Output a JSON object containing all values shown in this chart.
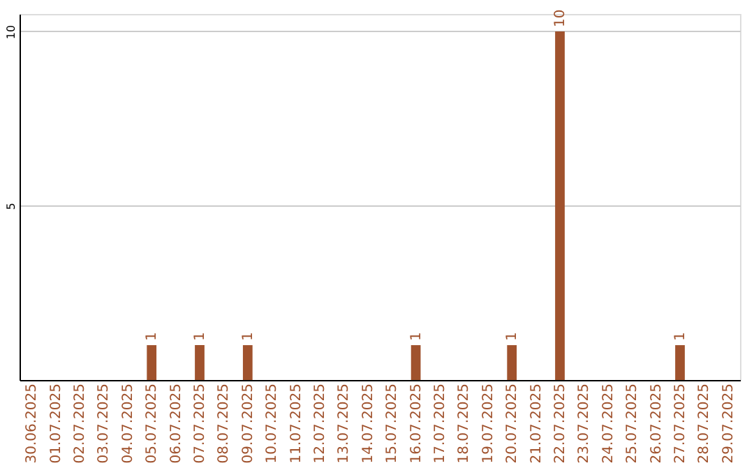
{
  "chart_data": {
    "type": "bar",
    "categories": [
      "30.06.2025",
      "01.07.2025",
      "02.07.2025",
      "03.07.2025",
      "04.07.2025",
      "05.07.2025",
      "06.07.2025",
      "07.07.2025",
      "08.07.2025",
      "09.07.2025",
      "10.07.2025",
      "11.07.2025",
      "12.07.2025",
      "13.07.2025",
      "14.07.2025",
      "15.07.2025",
      "16.07.2025",
      "17.07.2025",
      "18.07.2025",
      "19.07.2025",
      "20.07.2025",
      "21.07.2025",
      "22.07.2025",
      "23.07.2025",
      "24.07.2025",
      "25.07.2025",
      "26.07.2025",
      "27.07.2025",
      "28.07.2025",
      "29.07.2025"
    ],
    "values": [
      0,
      0,
      0,
      0,
      0,
      1,
      0,
      1,
      0,
      1,
      0,
      0,
      0,
      0,
      0,
      0,
      1,
      0,
      0,
      0,
      1,
      0,
      10,
      0,
      0,
      0,
      0,
      1,
      0,
      0
    ],
    "value_labels": [
      null,
      null,
      null,
      null,
      null,
      "1",
      null,
      "1",
      null,
      "1",
      null,
      null,
      null,
      null,
      null,
      null,
      "1",
      null,
      null,
      null,
      "1",
      null,
      "10",
      null,
      null,
      null,
      null,
      "1",
      null,
      null
    ],
    "color": "#a0522d",
    "ylim": [
      0,
      10.5
    ],
    "yticks": [
      5,
      10
    ],
    "grid": "y"
  }
}
